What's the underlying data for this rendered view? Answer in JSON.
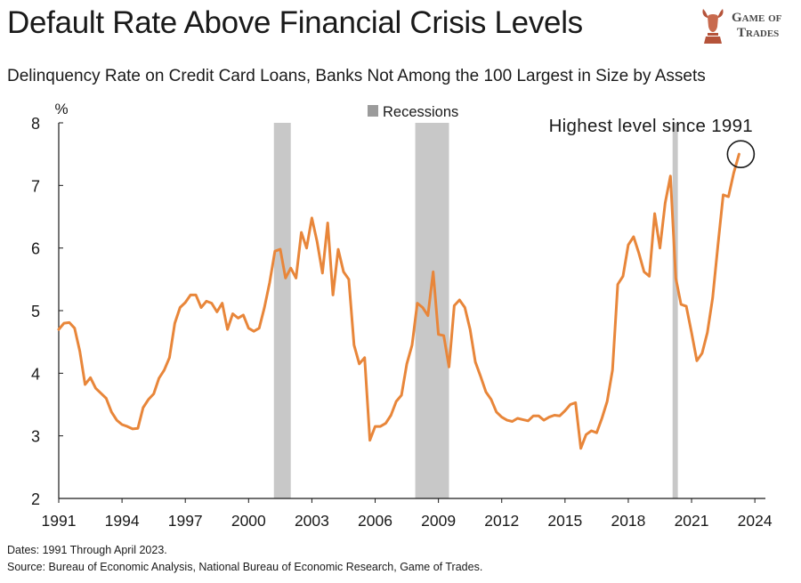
{
  "title": "Default Rate Above Financial Crisis Levels",
  "subtitle": "Delinquency Rate on Credit Card Loans, Banks Not Among the 100 Largest in Size by Assets",
  "logo": {
    "line1": "Game of",
    "line2": "Trades",
    "icon": "bull-head-icon"
  },
  "footer": {
    "dates": "Dates: 1991 Through April 2023.",
    "source": "Source: Bureau of Economic Analysis, National Bureau of Economic Research, Game of Trades."
  },
  "colors": {
    "line": "#E8863A",
    "recession": "#C8C8C8",
    "text": "#1a1a1a"
  },
  "chart_data": {
    "type": "line",
    "ylabel": "%",
    "ylim": [
      2,
      8
    ],
    "yticks": [
      2,
      3,
      4,
      5,
      6,
      7,
      8
    ],
    "xlim": [
      1991,
      2024.5
    ],
    "xticks": [
      1991,
      1994,
      1997,
      2000,
      2003,
      2006,
      2009,
      2012,
      2015,
      2018,
      2021,
      2024
    ],
    "legend": {
      "label": "Recessions",
      "placement": "top-center"
    },
    "annotation": {
      "text": "Highest level since 1991",
      "x": 2023.25,
      "y": 7.5
    },
    "recessions": [
      [
        2001.2,
        2002.0
      ],
      [
        2007.9,
        2009.5
      ],
      [
        2020.1,
        2020.35
      ]
    ],
    "series": [
      {
        "values": [
          [
            1991.0,
            4.7
          ],
          [
            1991.25,
            4.8
          ],
          [
            1991.5,
            4.81
          ],
          [
            1991.75,
            4.72
          ],
          [
            1992.0,
            4.35
          ],
          [
            1992.25,
            3.82
          ],
          [
            1992.5,
            3.93
          ],
          [
            1992.75,
            3.76
          ],
          [
            1993.0,
            3.68
          ],
          [
            1993.25,
            3.6
          ],
          [
            1993.5,
            3.38
          ],
          [
            1993.75,
            3.25
          ],
          [
            1994.0,
            3.18
          ],
          [
            1994.25,
            3.15
          ],
          [
            1994.5,
            3.11
          ],
          [
            1994.75,
            3.12
          ],
          [
            1995.0,
            3.45
          ],
          [
            1995.25,
            3.58
          ],
          [
            1995.5,
            3.67
          ],
          [
            1995.75,
            3.92
          ],
          [
            1996.0,
            4.05
          ],
          [
            1996.25,
            4.25
          ],
          [
            1996.5,
            4.8
          ],
          [
            1996.75,
            5.05
          ],
          [
            1997.0,
            5.13
          ],
          [
            1997.25,
            5.25
          ],
          [
            1997.5,
            5.25
          ],
          [
            1997.75,
            5.05
          ],
          [
            1998.0,
            5.15
          ],
          [
            1998.25,
            5.12
          ],
          [
            1998.5,
            4.98
          ],
          [
            1998.75,
            5.12
          ],
          [
            1999.0,
            4.7
          ],
          [
            1999.25,
            4.95
          ],
          [
            1999.5,
            4.88
          ],
          [
            1999.75,
            4.93
          ],
          [
            2000.0,
            4.72
          ],
          [
            2000.25,
            4.67
          ],
          [
            2000.5,
            4.72
          ],
          [
            2000.75,
            5.05
          ],
          [
            2001.0,
            5.45
          ],
          [
            2001.25,
            5.95
          ],
          [
            2001.5,
            5.98
          ],
          [
            2001.75,
            5.52
          ],
          [
            2002.0,
            5.68
          ],
          [
            2002.25,
            5.52
          ],
          [
            2002.5,
            6.25
          ],
          [
            2002.75,
            6.0
          ],
          [
            2003.0,
            6.48
          ],
          [
            2003.25,
            6.1
          ],
          [
            2003.5,
            5.6
          ],
          [
            2003.75,
            6.4
          ],
          [
            2004.0,
            5.25
          ],
          [
            2004.25,
            5.98
          ],
          [
            2004.5,
            5.62
          ],
          [
            2004.75,
            5.5
          ],
          [
            2005.0,
            4.45
          ],
          [
            2005.25,
            4.15
          ],
          [
            2005.5,
            4.25
          ],
          [
            2005.75,
            2.93
          ],
          [
            2006.0,
            3.15
          ],
          [
            2006.25,
            3.15
          ],
          [
            2006.5,
            3.2
          ],
          [
            2006.75,
            3.33
          ],
          [
            2007.0,
            3.55
          ],
          [
            2007.25,
            3.65
          ],
          [
            2007.5,
            4.15
          ],
          [
            2007.75,
            4.45
          ],
          [
            2008.0,
            5.12
          ],
          [
            2008.25,
            5.05
          ],
          [
            2008.5,
            4.92
          ],
          [
            2008.75,
            5.62
          ],
          [
            2009.0,
            4.62
          ],
          [
            2009.25,
            4.6
          ],
          [
            2009.5,
            4.1
          ],
          [
            2009.75,
            5.08
          ],
          [
            2010.0,
            5.17
          ],
          [
            2010.25,
            5.05
          ],
          [
            2010.5,
            4.7
          ],
          [
            2010.75,
            4.18
          ],
          [
            2011.0,
            3.95
          ],
          [
            2011.25,
            3.7
          ],
          [
            2011.5,
            3.58
          ],
          [
            2011.75,
            3.38
          ],
          [
            2012.0,
            3.3
          ],
          [
            2012.25,
            3.25
          ],
          [
            2012.5,
            3.23
          ],
          [
            2012.75,
            3.28
          ],
          [
            2013.0,
            3.26
          ],
          [
            2013.25,
            3.24
          ],
          [
            2013.5,
            3.32
          ],
          [
            2013.75,
            3.32
          ],
          [
            2014.0,
            3.25
          ],
          [
            2014.25,
            3.3
          ],
          [
            2014.5,
            3.33
          ],
          [
            2014.75,
            3.32
          ],
          [
            2015.0,
            3.4
          ],
          [
            2015.25,
            3.5
          ],
          [
            2015.5,
            3.53
          ],
          [
            2015.75,
            2.8
          ],
          [
            2016.0,
            3.02
          ],
          [
            2016.25,
            3.08
          ],
          [
            2016.5,
            3.05
          ],
          [
            2016.75,
            3.28
          ],
          [
            2017.0,
            3.55
          ],
          [
            2017.25,
            4.05
          ],
          [
            2017.5,
            5.42
          ],
          [
            2017.75,
            5.55
          ],
          [
            2018.0,
            6.05
          ],
          [
            2018.25,
            6.18
          ],
          [
            2018.5,
            5.92
          ],
          [
            2018.75,
            5.62
          ],
          [
            2019.0,
            5.55
          ],
          [
            2019.25,
            6.55
          ],
          [
            2019.5,
            6.0
          ],
          [
            2019.75,
            6.72
          ],
          [
            2020.0,
            7.15
          ],
          [
            2020.25,
            5.52
          ],
          [
            2020.5,
            5.1
          ],
          [
            2020.75,
            5.07
          ],
          [
            2021.0,
            4.65
          ],
          [
            2021.25,
            4.2
          ],
          [
            2021.5,
            4.32
          ],
          [
            2021.75,
            4.65
          ],
          [
            2022.0,
            5.2
          ],
          [
            2022.25,
            6.05
          ],
          [
            2022.5,
            6.85
          ],
          [
            2022.75,
            6.82
          ],
          [
            2023.0,
            7.2
          ],
          [
            2023.25,
            7.5
          ]
        ]
      }
    ]
  }
}
